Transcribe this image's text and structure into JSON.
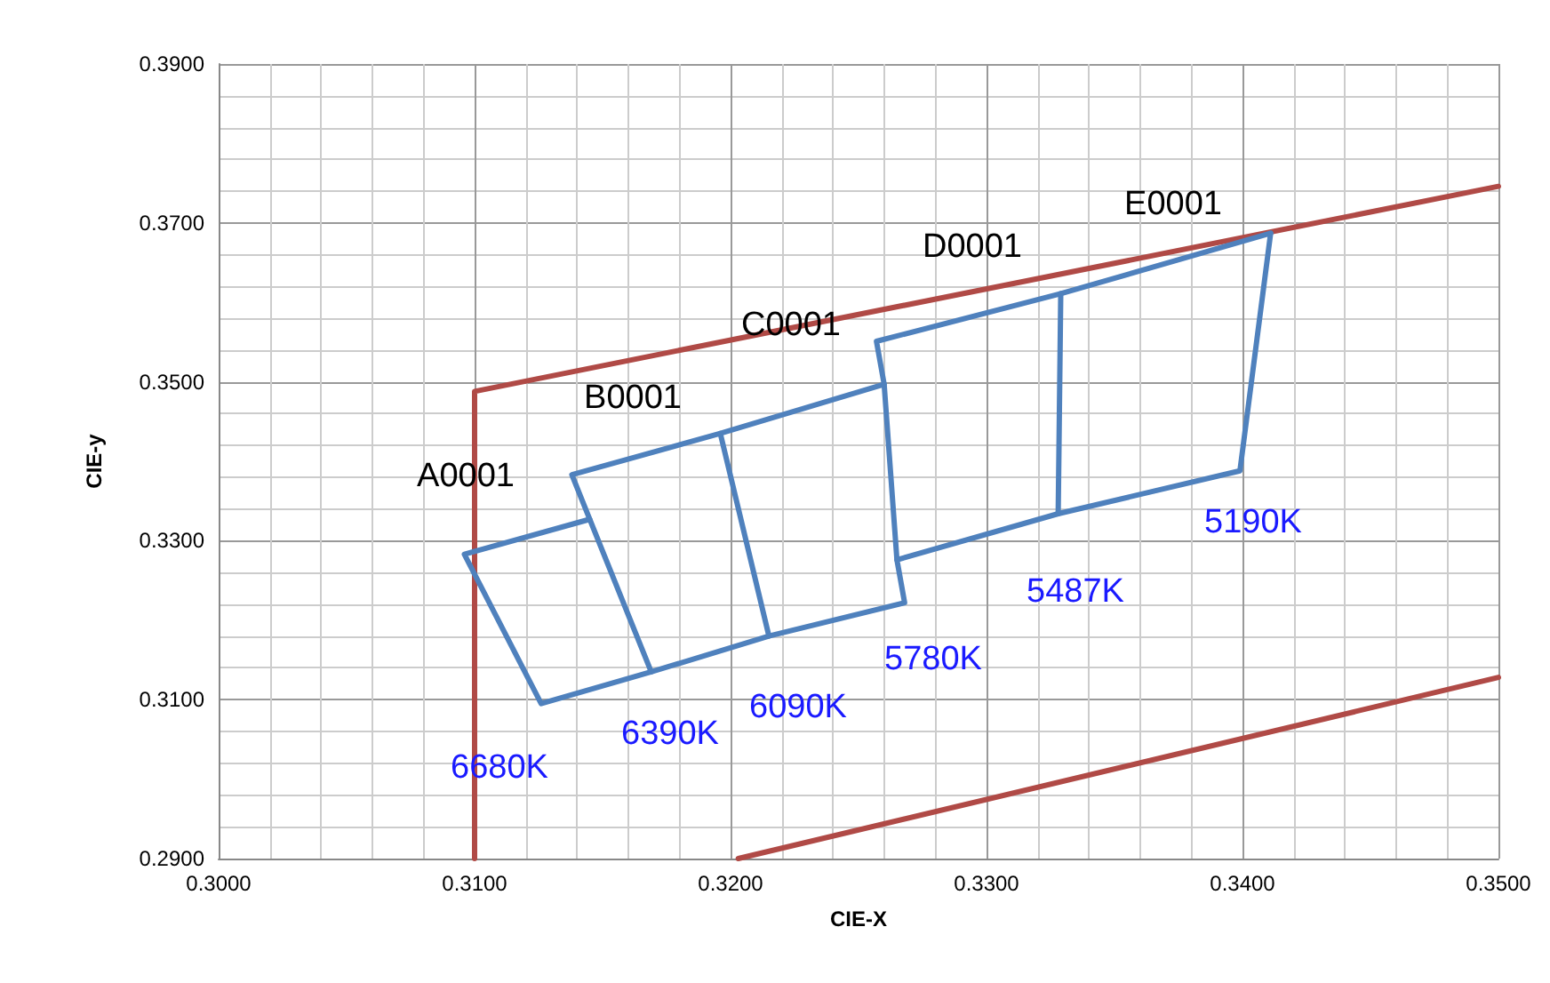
{
  "chart_data": {
    "type": "line",
    "xlabel": "CIE-X",
    "ylabel": "CIE-y",
    "xlim": [
      0.3,
      0.35
    ],
    "ylim": [
      0.29,
      0.39
    ],
    "xticks": [
      {
        "value": 0.3,
        "label": "0.3000"
      },
      {
        "value": 0.31,
        "label": "0.3100"
      },
      {
        "value": 0.32,
        "label": "0.3200"
      },
      {
        "value": 0.33,
        "label": "0.3300"
      },
      {
        "value": 0.34,
        "label": "0.3400"
      },
      {
        "value": 0.35,
        "label": "0.3500"
      }
    ],
    "yticks": [
      {
        "value": 0.29,
        "label": "0.2900"
      },
      {
        "value": 0.31,
        "label": "0.3100"
      },
      {
        "value": 0.33,
        "label": "0.3300"
      },
      {
        "value": 0.35,
        "label": "0.3500"
      },
      {
        "value": 0.37,
        "label": "0.3700"
      },
      {
        "value": 0.39,
        "label": "0.3900"
      }
    ],
    "grid": true,
    "marker": "none",
    "line_style": "solid",
    "series": [
      {
        "color": "#b04a46",
        "x": [
          0.31,
          0.31,
          0.35
        ],
        "values": [
          0.29,
          0.3488,
          0.3746
        ]
      },
      {
        "color": "#b04a46",
        "x": [
          0.3203,
          0.35
        ],
        "values": [
          0.29,
          0.3128
        ]
      },
      {
        "color": "#4f81bd",
        "x": [
          0.3145,
          0.3096,
          0.3126,
          0.3169,
          0.3215,
          0.3268,
          0.3265,
          0.3328,
          0.3399,
          0.3411
        ],
        "values": [
          0.3327,
          0.3283,
          0.3095,
          0.3135,
          0.318,
          0.3222,
          0.3276,
          0.3334,
          0.3388,
          0.3687
        ]
      },
      {
        "color": "#4f81bd",
        "x": [
          0.3169,
          0.3145,
          0.3138,
          0.3196,
          0.326,
          0.3257,
          0.3329,
          0.3411
        ],
        "values": [
          0.3135,
          0.3327,
          0.3383,
          0.3435,
          0.3497,
          0.3551,
          0.3611,
          0.3687
        ]
      },
      {
        "color": "#4f81bd",
        "x": [
          0.3196,
          0.3215
        ],
        "values": [
          0.3435,
          0.318
        ]
      },
      {
        "color": "#4f81bd",
        "x": [
          0.326,
          0.3265
        ],
        "values": [
          0.3497,
          0.3276
        ]
      },
      {
        "color": "#4f81bd",
        "x": [
          0.3329,
          0.3328
        ],
        "values": [
          0.3611,
          0.3334
        ]
      }
    ],
    "annotations": [
      "A0001",
      "B0001",
      "C0001",
      "D0001",
      "E0001",
      "6680K",
      "6390K",
      "6090K",
      "5780K",
      "5487K",
      "5190K"
    ]
  }
}
